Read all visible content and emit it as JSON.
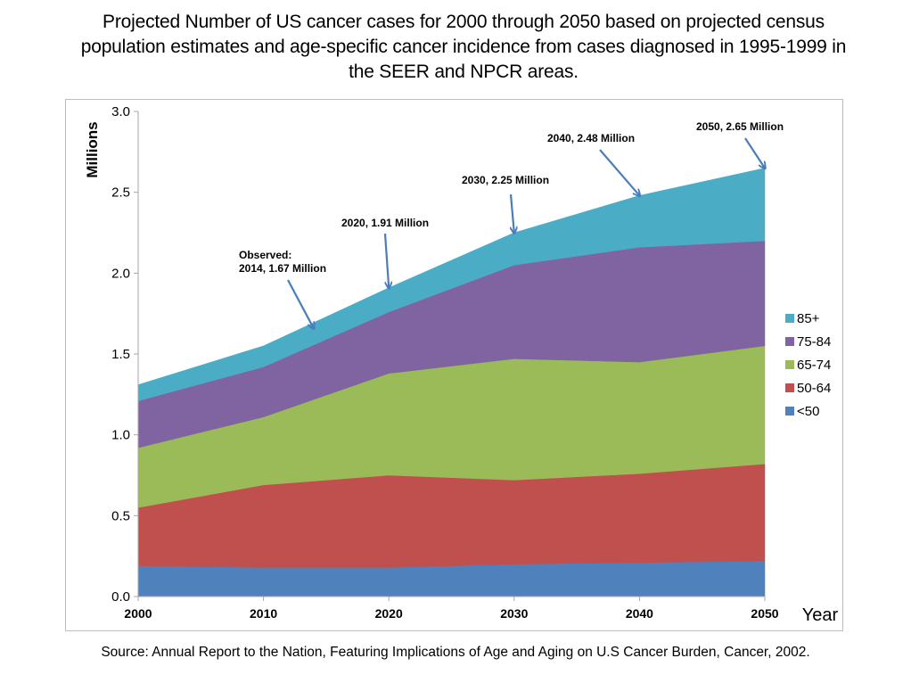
{
  "title_lines": [
    "Projected Number of US cancer cases for 2000 through 2050 based on projected census",
    "population  estimates and age-specific cancer incidence from cases diagnosed in 1995-1999 in",
    "the SEER and NPCR areas."
  ],
  "source": "Source: Annual Report to the Nation, Featuring Implications of Age and Aging on U.S Cancer Burden, Cancer, 2002.",
  "chart_data": {
    "type": "area",
    "stacked": true,
    "title": "Projected Number of US cancer cases for 2000 through 2050 based on projected census population estimates and age-specific cancer incidence from cases diagnosed in 1995-1999 in the SEER and NPCR areas.",
    "xlabel": "Year",
    "ylabel": "Millions",
    "x": [
      2000,
      2010,
      2020,
      2030,
      2040,
      2050
    ],
    "xticks": [
      "2000",
      "2010",
      "2020",
      "2030",
      "2040",
      "2050"
    ],
    "yticks": [
      "0.0",
      "0.5",
      "1.0",
      "1.5",
      "2.0",
      "2.5",
      "3.0"
    ],
    "ylim": [
      0,
      3.0
    ],
    "xlim": [
      2000,
      2050
    ],
    "grid": false,
    "legend_position": "right",
    "series": [
      {
        "name": "<50",
        "color": "#4f81bd",
        "values": [
          0.19,
          0.18,
          0.18,
          0.2,
          0.21,
          0.22
        ]
      },
      {
        "name": "50-64",
        "color": "#c0504d",
        "values": [
          0.36,
          0.51,
          0.57,
          0.52,
          0.55,
          0.6
        ]
      },
      {
        "name": "65-74",
        "color": "#9bbb59",
        "values": [
          0.37,
          0.42,
          0.63,
          0.75,
          0.69,
          0.73
        ]
      },
      {
        "name": "75-84",
        "color": "#8064a2",
        "values": [
          0.29,
          0.31,
          0.38,
          0.58,
          0.71,
          0.65
        ]
      },
      {
        "name": "85+",
        "color": "#4bacc6",
        "values": [
          0.1,
          0.13,
          0.15,
          0.2,
          0.32,
          0.45
        ]
      }
    ],
    "legend_order": [
      "85+",
      "75-84",
      "65-74",
      "50-64",
      "<50"
    ],
    "annotations": [
      {
        "lines": [
          "Observed:",
          "2014, 1.67 Million"
        ],
        "x": 2014,
        "y": 1.67
      },
      {
        "lines": [
          "2020, 1.91 Million"
        ],
        "x": 2020,
        "y": 1.91
      },
      {
        "lines": [
          "2030, 2.25 Million"
        ],
        "x": 2030,
        "y": 2.25
      },
      {
        "lines": [
          "2040, 2.48 Million"
        ],
        "x": 2040,
        "y": 2.48
      },
      {
        "lines": [
          "2050, 2.65 Million"
        ],
        "x": 2050,
        "y": 2.65
      }
    ],
    "arrow_color": "#4a7ebb"
  }
}
